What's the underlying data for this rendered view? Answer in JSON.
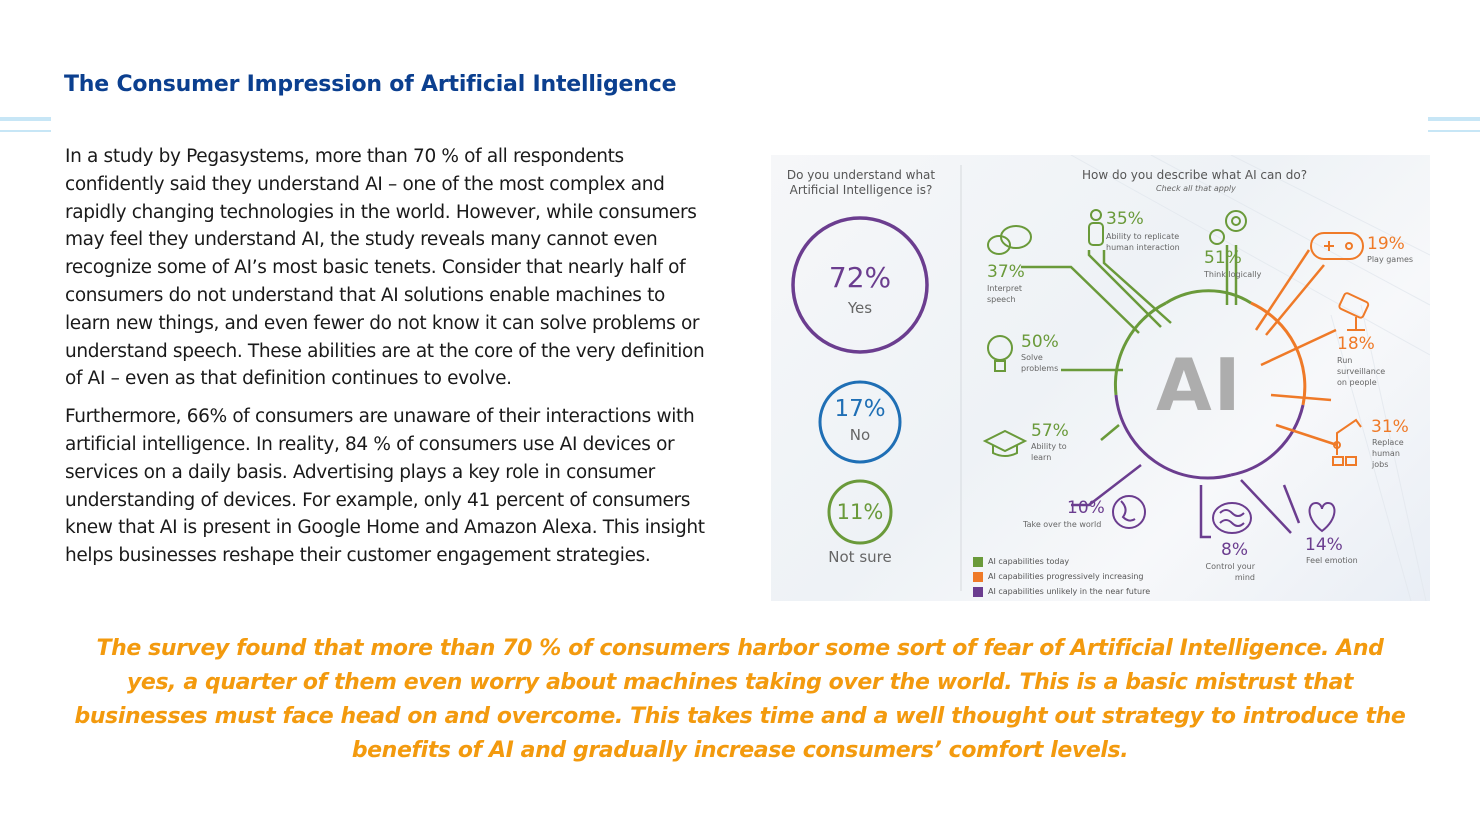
{
  "page": {
    "title": "The Consumer Impression of Artificial Intelligence",
    "paragraphs": [
      "In a study by Pegasystems, more than 70 % of all respondents confidently said they understand AI – one of the most complex and rapidly changing technologies in the world. However, while consumers may feel they understand AI, the study reveals many cannot even recognize some of AI’s most basic tenets. Consider that nearly half of consumers do not understand that AI solutions enable machines to learn new things, and even fewer do not know it can solve problems or understand speech. These abilities are at the core of the very definition of AI – even as that definition continues to evolve.",
      "Furthermore, 66% of consumers are unaware of their interactions with artificial intelligence. In reality, 84 % of consumers use AI devices or services on a daily basis. Advertising plays a key role in consumer understanding of devices. For example, only 41 percent of consumers knew that AI is present in Google Home and Amazon Alexa. This insight helps businesses reshape their customer engagement strategies."
    ],
    "callout": "The survey found that more than 70 % of consumers harbor some sort of fear of Artificial Intelligence. And yes, a quarter of them even worry about machines taking over the world. This is a basic mistrust that businesses must face head on and overcome. This takes time and a well thought out strategy to introduce the benefits of AI and gradually increase consumers’ comfort levels."
  },
  "infographic": {
    "q1_title_line1": "Do you understand what",
    "q1_title_line2": "Artificial Intelligence is?",
    "q2_title": "How do you describe what AI can do?",
    "q2_sub": "Check all that apply",
    "center_label": "AI",
    "understanding": [
      {
        "pct": "72%",
        "label": "Yes",
        "color": "#6b3d8f"
      },
      {
        "pct": "17%",
        "label": "No",
        "color": "#1f6fb5"
      },
      {
        "pct": "11%",
        "label": "Not sure",
        "color": "#6a9a3a"
      }
    ],
    "capabilities": {
      "interpret_speech": {
        "pct": "37%",
        "label": "Interpret speech",
        "icon": "speech-bubbles-icon"
      },
      "replicate_human": {
        "pct": "35%",
        "label": "Ability to replicate human interaction",
        "icon": "person-icon"
      },
      "think_logically": {
        "pct": "51%",
        "label": "Think logically",
        "icon": "gears-icon"
      },
      "play_games": {
        "pct": "19%",
        "label": "Play games",
        "icon": "gamepad-icon"
      },
      "surveillance": {
        "pct": "18%",
        "label": "Run surveillance on people",
        "icon": "camera-icon"
      },
      "replace_jobs": {
        "pct": "31%",
        "label": "Replace human jobs",
        "icon": "robot-arm-icon"
      },
      "feel_emotion": {
        "pct": "14%",
        "label": "Feel emotion",
        "icon": "heart-icon"
      },
      "control_mind": {
        "pct": "8%",
        "label": "Control your mind",
        "icon": "brain-icon"
      },
      "take_over": {
        "pct": "10%",
        "label": "Take over the world",
        "icon": "globe-icon"
      },
      "ability_learn": {
        "pct": "57%",
        "label": "Ability to learn",
        "icon": "graduation-cap-icon"
      },
      "solve_problems": {
        "pct": "50%",
        "label": "Solve problems",
        "icon": "lightbulb-icon"
      }
    },
    "legend": [
      {
        "label": "AI capabilities today",
        "color": "#6a9a3a"
      },
      {
        "label": "AI capabilities progressively increasing",
        "color": "#ef7a28"
      },
      {
        "label": "AI capabilities unlikely in the near future",
        "color": "#6b3d8f"
      }
    ]
  }
}
